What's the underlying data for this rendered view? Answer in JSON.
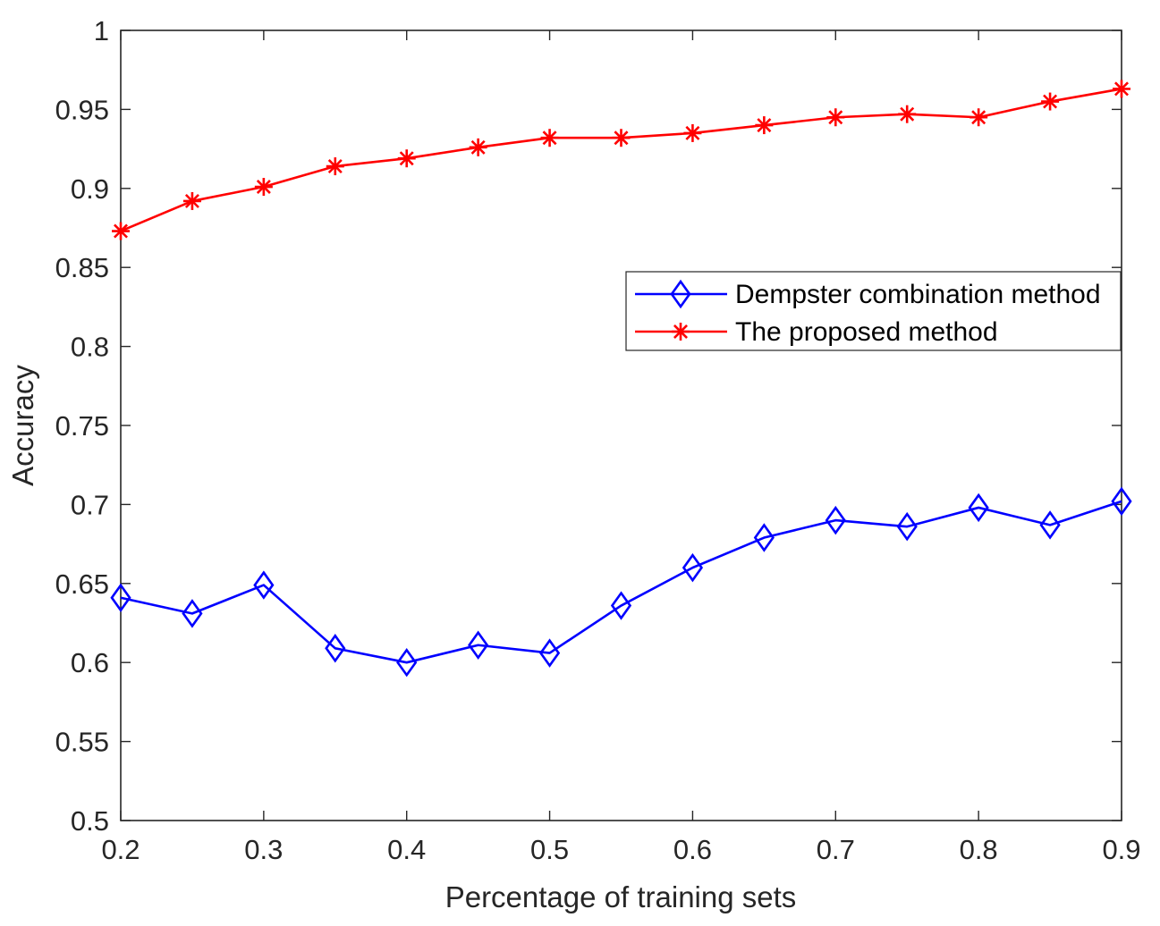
{
  "chart_data": {
    "type": "line",
    "xlabel": "Percentage of training sets",
    "ylabel": "Accuracy",
    "xlim": [
      0.2,
      0.9
    ],
    "ylim": [
      0.5,
      1.0
    ],
    "xticks": [
      0.2,
      0.3,
      0.4,
      0.5,
      0.6,
      0.7,
      0.8,
      0.9
    ],
    "xtick_labels": [
      "0.2",
      "0.3",
      "0.4",
      "0.5",
      "0.6",
      "0.7",
      "0.8",
      "0.9"
    ],
    "yticks": [
      0.5,
      0.55,
      0.6,
      0.65,
      0.7,
      0.75,
      0.8,
      0.85,
      0.9,
      0.95,
      1.0
    ],
    "ytick_labels": [
      "0.5",
      "0.55",
      "0.6",
      "0.65",
      "0.7",
      "0.75",
      "0.8",
      "0.85",
      "0.9",
      "0.95",
      "1"
    ],
    "grid": false,
    "legend_position": "right",
    "x": [
      0.2,
      0.25,
      0.3,
      0.35,
      0.4,
      0.45,
      0.5,
      0.55,
      0.6,
      0.65,
      0.7,
      0.75,
      0.8,
      0.85,
      0.9
    ],
    "series": [
      {
        "name": "Dempster combination method",
        "color": "#0000ff",
        "marker": "diamond",
        "values": [
          0.641,
          0.631,
          0.649,
          0.609,
          0.6,
          0.611,
          0.606,
          0.636,
          0.66,
          0.679,
          0.69,
          0.686,
          0.698,
          0.687,
          0.702
        ]
      },
      {
        "name": "The proposed method",
        "color": "#ff0000",
        "marker": "asterisk",
        "values": [
          0.873,
          0.892,
          0.901,
          0.914,
          0.919,
          0.926,
          0.932,
          0.932,
          0.935,
          0.94,
          0.945,
          0.947,
          0.945,
          0.955,
          0.963
        ]
      }
    ]
  }
}
